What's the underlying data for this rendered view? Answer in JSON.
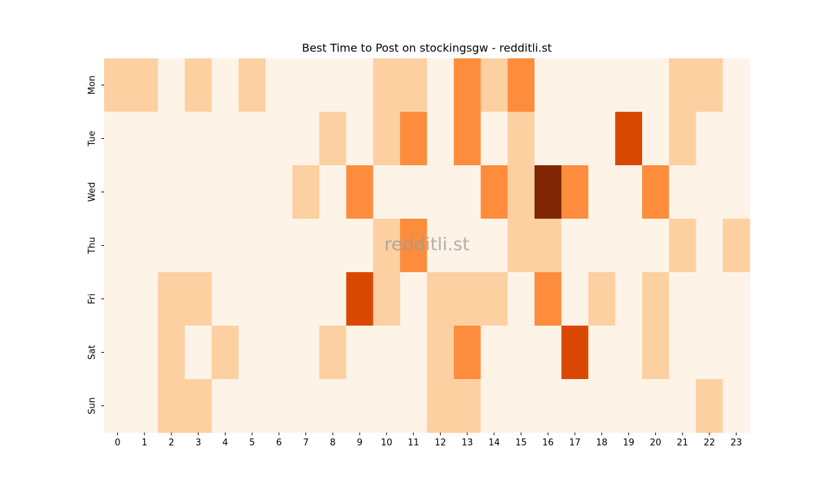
{
  "chart_data": {
    "type": "heatmap",
    "title": "Best Time to Post on stockingsgw - redditli.st",
    "watermark": "redditli.st",
    "x": [
      0,
      1,
      2,
      3,
      4,
      5,
      6,
      7,
      8,
      9,
      10,
      11,
      12,
      13,
      14,
      15,
      16,
      17,
      18,
      19,
      20,
      21,
      22,
      23
    ],
    "y": [
      "Mon",
      "Tue",
      "Wed",
      "Thu",
      "Fri",
      "Sat",
      "Sun"
    ],
    "colors": [
      "#fef3e7",
      "#fdd0a2",
      "#fd8d3c",
      "#d94801",
      "#7f2704"
    ],
    "values": [
      [
        1,
        1,
        0,
        1,
        0,
        1,
        0,
        0,
        0,
        0,
        1,
        1,
        0,
        2,
        1,
        2,
        0,
        0,
        0,
        0,
        0,
        1,
        1,
        0
      ],
      [
        0,
        0,
        0,
        0,
        0,
        0,
        0,
        0,
        1,
        0,
        1,
        2,
        0,
        2,
        0,
        1,
        0,
        0,
        0,
        3,
        0,
        1,
        0,
        0
      ],
      [
        0,
        0,
        0,
        0,
        0,
        0,
        0,
        1,
        0,
        2,
        0,
        0,
        0,
        0,
        2,
        1,
        4,
        2,
        0,
        0,
        2,
        0,
        0,
        0
      ],
      [
        0,
        0,
        0,
        0,
        0,
        0,
        0,
        0,
        0,
        0,
        1,
        2,
        0,
        0,
        0,
        1,
        1,
        0,
        0,
        0,
        0,
        1,
        0,
        1
      ],
      [
        0,
        0,
        1,
        1,
        0,
        0,
        0,
        0,
        0,
        3,
        1,
        0,
        1,
        1,
        1,
        0,
        2,
        0,
        1,
        0,
        1,
        0,
        0,
        0
      ],
      [
        0,
        0,
        1,
        0,
        1,
        0,
        0,
        0,
        1,
        0,
        0,
        0,
        1,
        2,
        0,
        0,
        0,
        3,
        0,
        0,
        1,
        0,
        0,
        0
      ],
      [
        0,
        0,
        1,
        1,
        0,
        0,
        0,
        0,
        0,
        0,
        0,
        0,
        1,
        1,
        0,
        0,
        0,
        0,
        0,
        0,
        0,
        0,
        1,
        0
      ]
    ]
  }
}
